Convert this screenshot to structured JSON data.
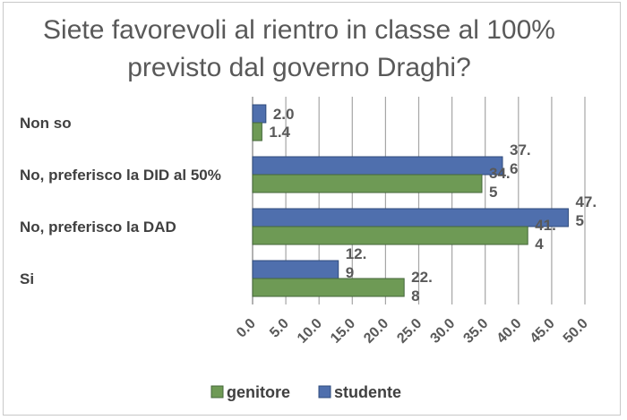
{
  "chart_data": {
    "type": "bar",
    "orientation": "horizontal",
    "title": "Siete favorevoli al rientro in classe al 100% previsto dal governo Draghi?",
    "categories": [
      "Non so",
      "No, preferisco la DID al 50%",
      "No, preferisco la DAD",
      "Si"
    ],
    "series": [
      {
        "name": "studente",
        "values": [
          2.0,
          37.6,
          47.5,
          12.9
        ],
        "labels": [
          "2.0",
          "37.6",
          "47.5",
          "12.9"
        ],
        "color": "#4f6fad"
      },
      {
        "name": "genitore",
        "values": [
          1.4,
          34.5,
          41.4,
          22.8
        ],
        "labels": [
          "1.4",
          "34.5",
          "41.4",
          "22.8"
        ],
        "color": "#6e9a55"
      }
    ],
    "xlim": [
      0,
      50
    ],
    "xticks": [
      "0.0",
      "5.0",
      "10.0",
      "15.0",
      "20.0",
      "25.0",
      "30.0",
      "35.0",
      "40.0",
      "45.0",
      "50.0"
    ],
    "grid": true,
    "legend": {
      "position": "bottom",
      "entries": [
        "genitore",
        "studente"
      ]
    }
  }
}
